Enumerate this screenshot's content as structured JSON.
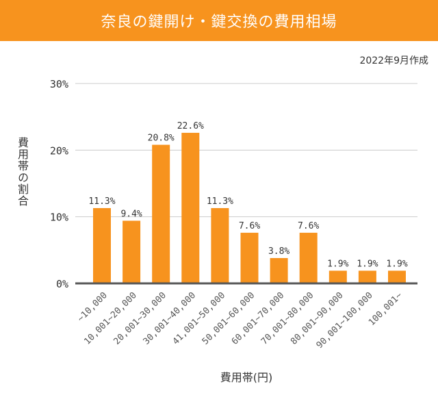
{
  "chart_data": {
    "type": "bar",
    "title": "奈良の鍵開け・鍵交換の費用相場",
    "subtitle": "2022年9月作成",
    "xlabel": "費用帯(円)",
    "ylabel": "費用帯の割合",
    "categories": [
      "~10,000",
      "10,001~20,000",
      "20,001~30,000",
      "30,001~40,000",
      "41,001~50,000",
      "50,001~60,000",
      "60,001~70,000",
      "70,001~80,000",
      "80,001~90,000",
      "90,001~100,000",
      "100,001~"
    ],
    "values": [
      11.3,
      9.4,
      20.8,
      22.6,
      11.3,
      7.6,
      3.8,
      7.6,
      1.9,
      1.9,
      1.9
    ],
    "data_labels": [
      "11.3%",
      "9.4%",
      "20.8%",
      "22.6%",
      "11.3%",
      "7.6%",
      "3.8%",
      "7.6%",
      "1.9%",
      "1.9%",
      "1.9%"
    ],
    "yticks": [
      "0%",
      "10%",
      "20%",
      "30%"
    ],
    "ylim": [
      0,
      30
    ],
    "grid": true,
    "colors": {
      "bar": "#f7931e",
      "header": "#f7931e",
      "grid": "#cccccc",
      "axis": "#555555"
    }
  }
}
